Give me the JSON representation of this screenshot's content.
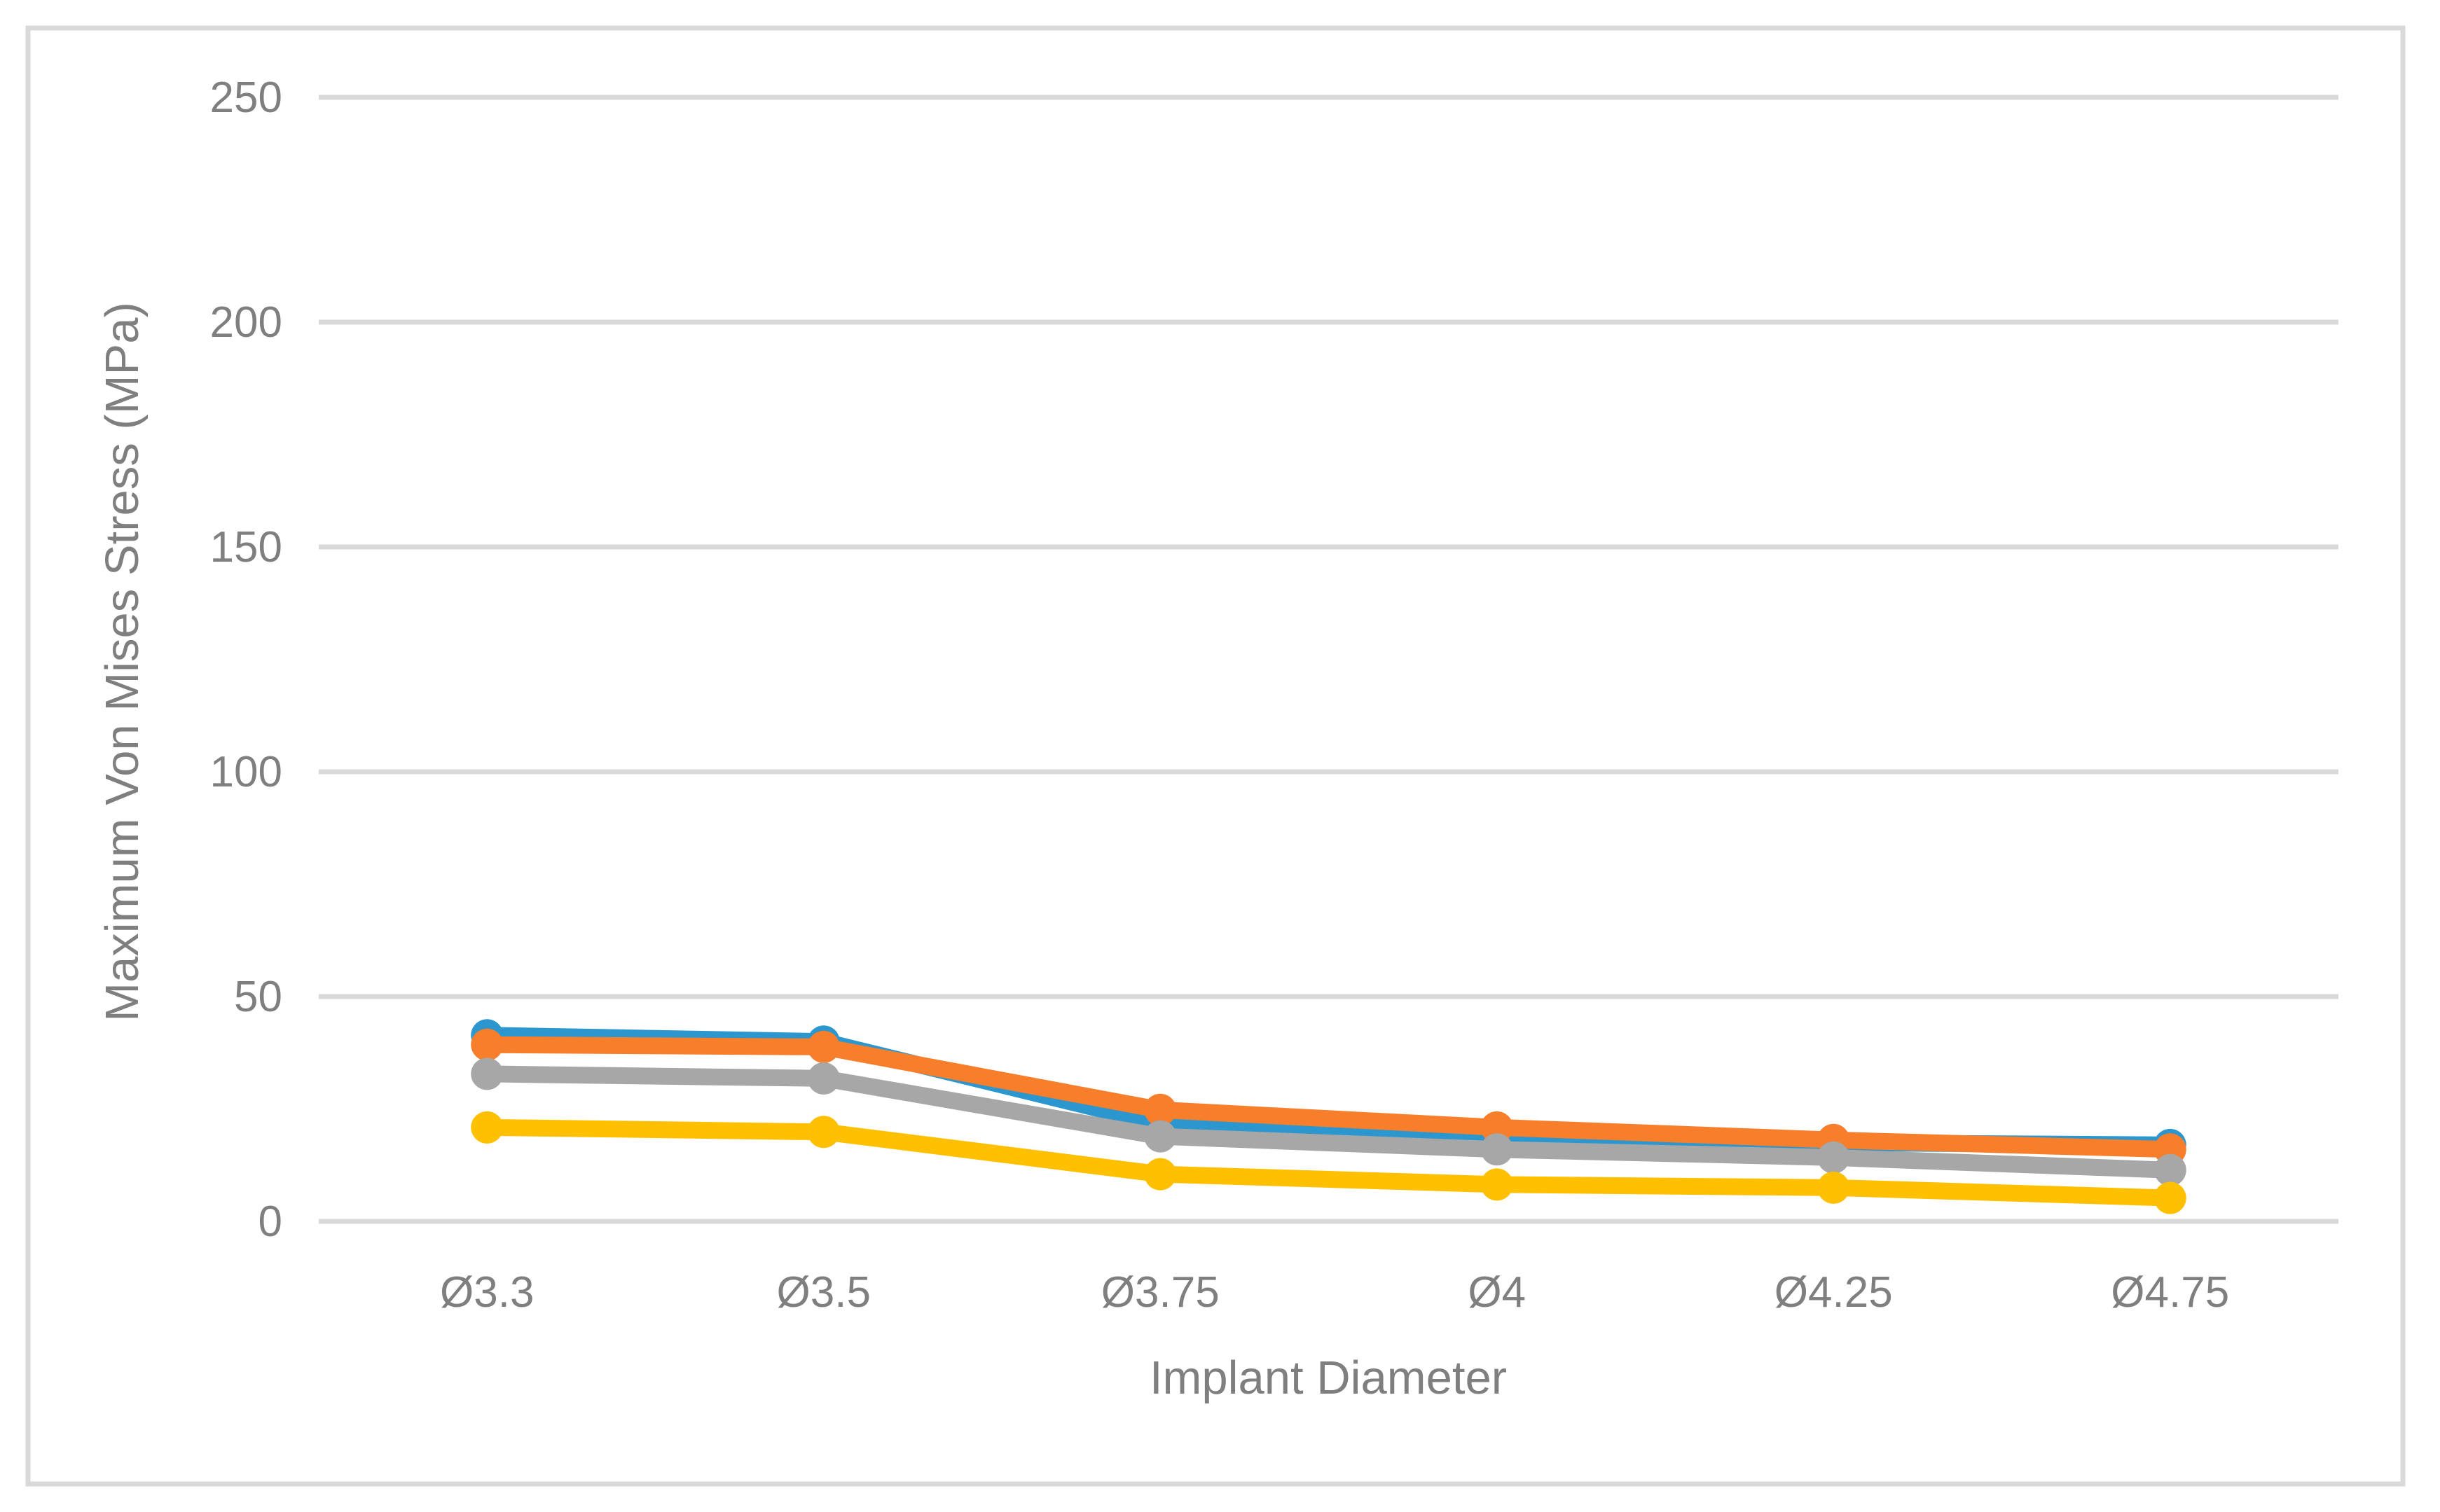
{
  "chart_data": {
    "type": "line",
    "title": "",
    "xlabel": "Implant Diameter",
    "ylabel": "Maximum Von Mises Stress (MPa)",
    "categories": [
      "Ø3.3",
      "Ø3.5",
      "Ø3.75",
      "Ø4",
      "Ø4.25",
      "Ø4.75"
    ],
    "series": [
      {
        "name": "blue",
        "color": "#2B97CE",
        "values": [
          41.4,
          40.0,
          21.7,
          18.1,
          17.5,
          17.0
        ]
      },
      {
        "name": "orange",
        "color": "#F77E2B",
        "values": [
          39.3,
          38.8,
          24.8,
          20.9,
          18.1,
          16.0
        ]
      },
      {
        "name": "gray",
        "color": "#A7A7A7",
        "values": [
          32.8,
          31.8,
          18.9,
          16.0,
          14.2,
          11.4
        ]
      },
      {
        "name": "yellow",
        "color": "#FFC002",
        "values": [
          20.9,
          19.9,
          10.5,
          8.2,
          7.5,
          5.2
        ]
      }
    ],
    "ylim": [
      0,
      250
    ],
    "yticks": [
      0,
      50,
      100,
      150,
      200,
      250
    ],
    "grid": "horizontal",
    "legend": "none",
    "markers": "circle"
  },
  "colors": {
    "grid": "#D9D9D9",
    "frame": "#D9D9D9",
    "axis_text": "#7F7F7F"
  }
}
